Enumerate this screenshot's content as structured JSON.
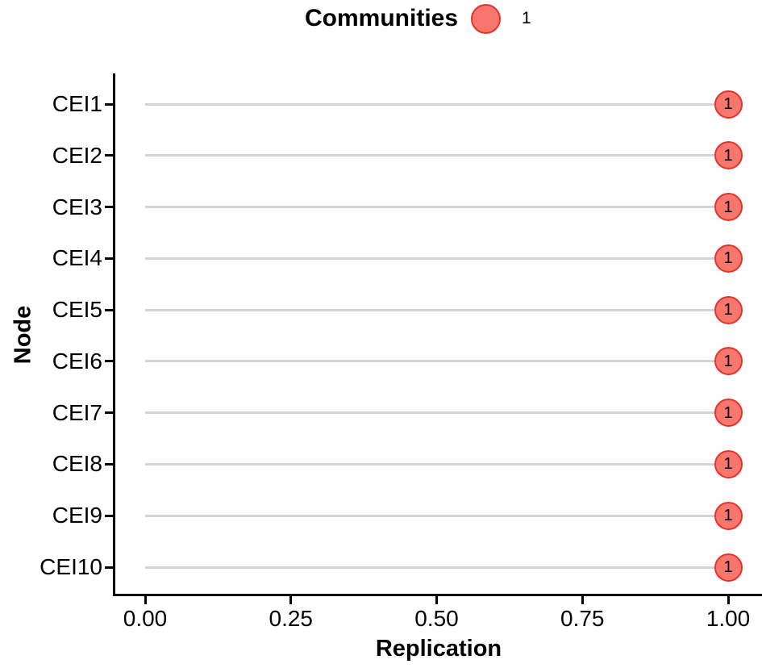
{
  "legend": {
    "title": "Communities",
    "position": "top",
    "items": [
      {
        "label": "1",
        "fill": "#F8766D",
        "stroke": "#E0352B"
      }
    ]
  },
  "axes": {
    "x_title": "Replication",
    "y_title": "Node"
  },
  "chart_data": {
    "type": "lollipop",
    "orientation": "horizontal",
    "title": "",
    "legend_title": "Communities",
    "legend_entries": [
      "1"
    ],
    "legend_position": "top",
    "xlabel": "Replication",
    "ylabel": "Node",
    "categories": [
      "CEI1",
      "CEI2",
      "CEI3",
      "CEI4",
      "CEI5",
      "CEI6",
      "CEI7",
      "CEI8",
      "CEI9",
      "CEI10"
    ],
    "values": [
      1.0,
      1.0,
      1.0,
      1.0,
      1.0,
      1.0,
      1.0,
      1.0,
      1.0,
      1.0
    ],
    "point_labels": [
      "1",
      "1",
      "1",
      "1",
      "1",
      "1",
      "1",
      "1",
      "1",
      "1"
    ],
    "community": "1",
    "xlim": [
      0,
      1
    ],
    "xtick_values": [
      0,
      0.25,
      0.5,
      0.75,
      1
    ],
    "xtick_labels": [
      "0.00",
      "0.25",
      "0.50",
      "0.75",
      "1.00"
    ],
    "grid": false,
    "colors": {
      "point_fill": "#F8766D",
      "point_stroke": "#E0352B",
      "stem": "#D4D4D4",
      "axis": "#000000",
      "text": "#000000"
    }
  }
}
